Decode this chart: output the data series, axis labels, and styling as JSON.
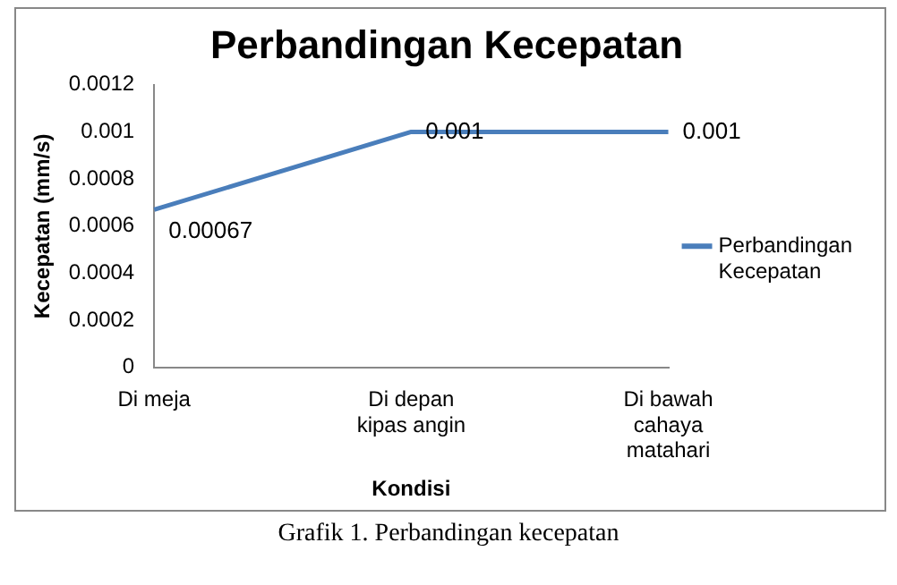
{
  "chart_data": {
    "type": "line",
    "title": "Perbandingan Kecepatan",
    "xlabel": "Kondisi",
    "ylabel": "Kecepatan (mm/s)",
    "categories": [
      "Di meja",
      "Di depan kipas angin",
      "Di bawah cahaya matahari"
    ],
    "series": [
      {
        "name": "Perbandingan Kecepatan",
        "color": "#4a7ebb",
        "values": [
          0.00067,
          0.001,
          0.001
        ]
      }
    ],
    "ylim": [
      0,
      0.0012
    ],
    "yticks": [
      0,
      0.0002,
      0.0004,
      0.0006,
      0.0008,
      0.001,
      0.0012
    ],
    "data_labels": true,
    "legend": "right",
    "marker": "none",
    "grid": false,
    "annotations": [
      "Grafik 1. Perbandingan kecepatan"
    ]
  }
}
